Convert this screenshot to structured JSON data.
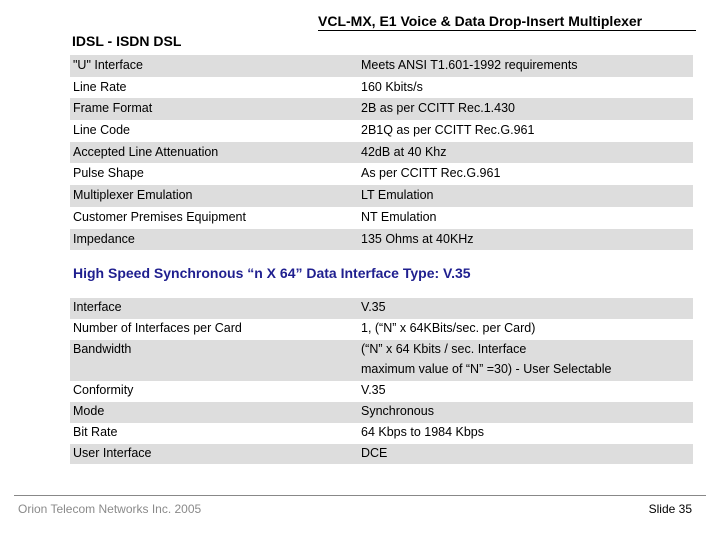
{
  "header": {
    "title": "VCL-MX, E1 Voice & Data Drop-Insert Multiplexer",
    "subtitle": "IDSL - ISDN DSL"
  },
  "idsl_table": [
    {
      "label": "\"U\" Interface",
      "value": "Meets ANSI T1.601-1992 requirements"
    },
    {
      "label": "Line Rate",
      "value": "160 Kbits/s"
    },
    {
      "label": "Frame Format",
      "value": "2B as per CCITT Rec.1.430"
    },
    {
      "label": "Line Code",
      "value": "2B1Q as per CCITT Rec.G.961"
    },
    {
      "label": "Accepted Line Attenuation",
      "value": "42dB at 40 Khz"
    },
    {
      "label": "Pulse Shape",
      "value": "As per CCITT Rec.G.961"
    },
    {
      "label": "Multiplexer Emulation",
      "value": "LT Emulation"
    },
    {
      "label": "Customer Premises Equipment",
      "value": "NT Emulation"
    },
    {
      "label": "Impedance",
      "value": "135 Ohms at 40KHz"
    }
  ],
  "section": {
    "title": "High Speed Synchronous  “n X 64” Data Interface Type: V.35"
  },
  "v35_table": [
    {
      "label": "Interface",
      "value": "V.35"
    },
    {
      "label": "Number of Interfaces per Card",
      "value": "1, (“N” x 64KBits/sec. per Card)"
    },
    {
      "label": "Bandwidth",
      "value": "(“N” x 64 Kbits / sec. Interface"
    },
    {
      "label": "",
      "value": "maximum value of “N” =30) - User Selectable"
    },
    {
      "label": "Conformity",
      "value": "V.35"
    },
    {
      "label": "Mode",
      "value": "Synchronous"
    },
    {
      "label": "Bit Rate",
      "value": "64 Kbps to 1984 Kbps"
    },
    {
      "label": "User Interface",
      "value": "DCE"
    }
  ],
  "footer": {
    "company": "Orion Telecom Networks Inc. 2005",
    "slide": "Slide 35"
  }
}
